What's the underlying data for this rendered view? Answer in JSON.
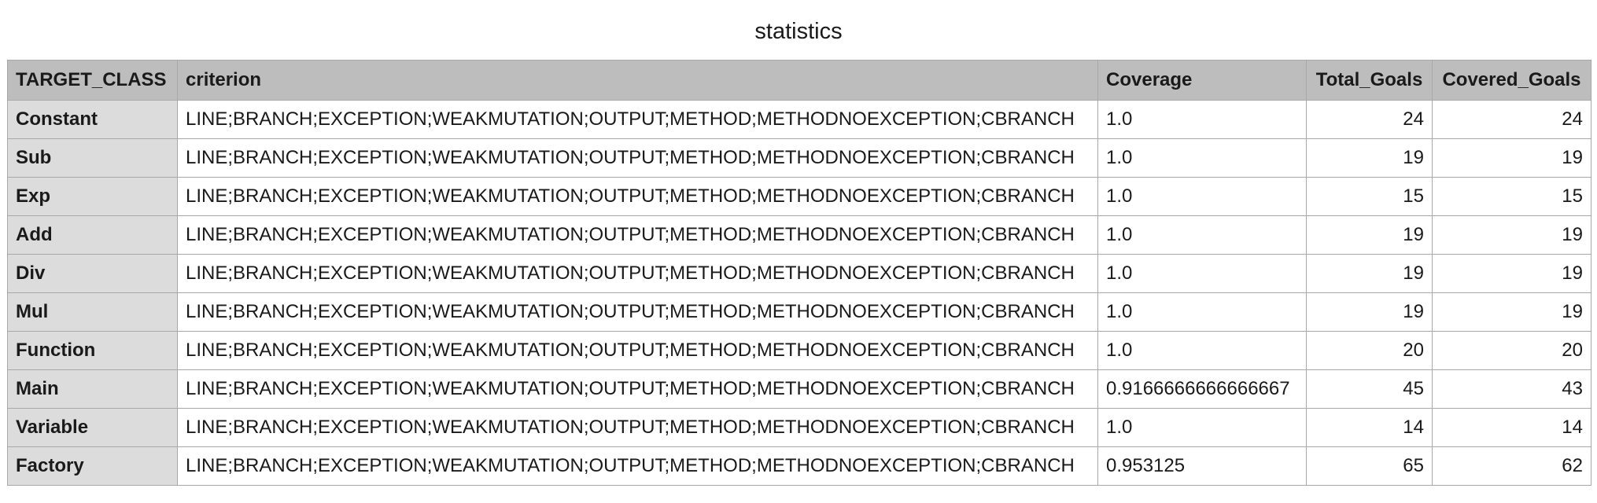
{
  "title": "statistics",
  "columns": [
    "TARGET_CLASS",
    "criterion",
    "Coverage",
    "Total_Goals",
    "Covered_Goals"
  ],
  "rows": [
    {
      "target_class": "Constant",
      "criterion": "LINE;BRANCH;EXCEPTION;WEAKMUTATION;OUTPUT;METHOD;METHODNOEXCEPTION;CBRANCH",
      "coverage": "1.0",
      "total_goals": "24",
      "covered_goals": "24"
    },
    {
      "target_class": "Sub",
      "criterion": "LINE;BRANCH;EXCEPTION;WEAKMUTATION;OUTPUT;METHOD;METHODNOEXCEPTION;CBRANCH",
      "coverage": "1.0",
      "total_goals": "19",
      "covered_goals": "19"
    },
    {
      "target_class": "Exp",
      "criterion": "LINE;BRANCH;EXCEPTION;WEAKMUTATION;OUTPUT;METHOD;METHODNOEXCEPTION;CBRANCH",
      "coverage": "1.0",
      "total_goals": "15",
      "covered_goals": "15"
    },
    {
      "target_class": "Add",
      "criterion": "LINE;BRANCH;EXCEPTION;WEAKMUTATION;OUTPUT;METHOD;METHODNOEXCEPTION;CBRANCH",
      "coverage": "1.0",
      "total_goals": "19",
      "covered_goals": "19"
    },
    {
      "target_class": "Div",
      "criterion": "LINE;BRANCH;EXCEPTION;WEAKMUTATION;OUTPUT;METHOD;METHODNOEXCEPTION;CBRANCH",
      "coverage": "1.0",
      "total_goals": "19",
      "covered_goals": "19"
    },
    {
      "target_class": "Mul",
      "criterion": "LINE;BRANCH;EXCEPTION;WEAKMUTATION;OUTPUT;METHOD;METHODNOEXCEPTION;CBRANCH",
      "coverage": "1.0",
      "total_goals": "19",
      "covered_goals": "19"
    },
    {
      "target_class": "Function",
      "criterion": "LINE;BRANCH;EXCEPTION;WEAKMUTATION;OUTPUT;METHOD;METHODNOEXCEPTION;CBRANCH",
      "coverage": "1.0",
      "total_goals": "20",
      "covered_goals": "20"
    },
    {
      "target_class": "Main",
      "criterion": "LINE;BRANCH;EXCEPTION;WEAKMUTATION;OUTPUT;METHOD;METHODNOEXCEPTION;CBRANCH",
      "coverage": "0.9166666666666667",
      "total_goals": "45",
      "covered_goals": "43"
    },
    {
      "target_class": "Variable",
      "criterion": "LINE;BRANCH;EXCEPTION;WEAKMUTATION;OUTPUT;METHOD;METHODNOEXCEPTION;CBRANCH",
      "coverage": "1.0",
      "total_goals": "14",
      "covered_goals": "14"
    },
    {
      "target_class": "Factory",
      "criterion": "LINE;BRANCH;EXCEPTION;WEAKMUTATION;OUTPUT;METHOD;METHODNOEXCEPTION;CBRANCH",
      "coverage": "0.953125",
      "total_goals": "65",
      "covered_goals": "62"
    }
  ]
}
